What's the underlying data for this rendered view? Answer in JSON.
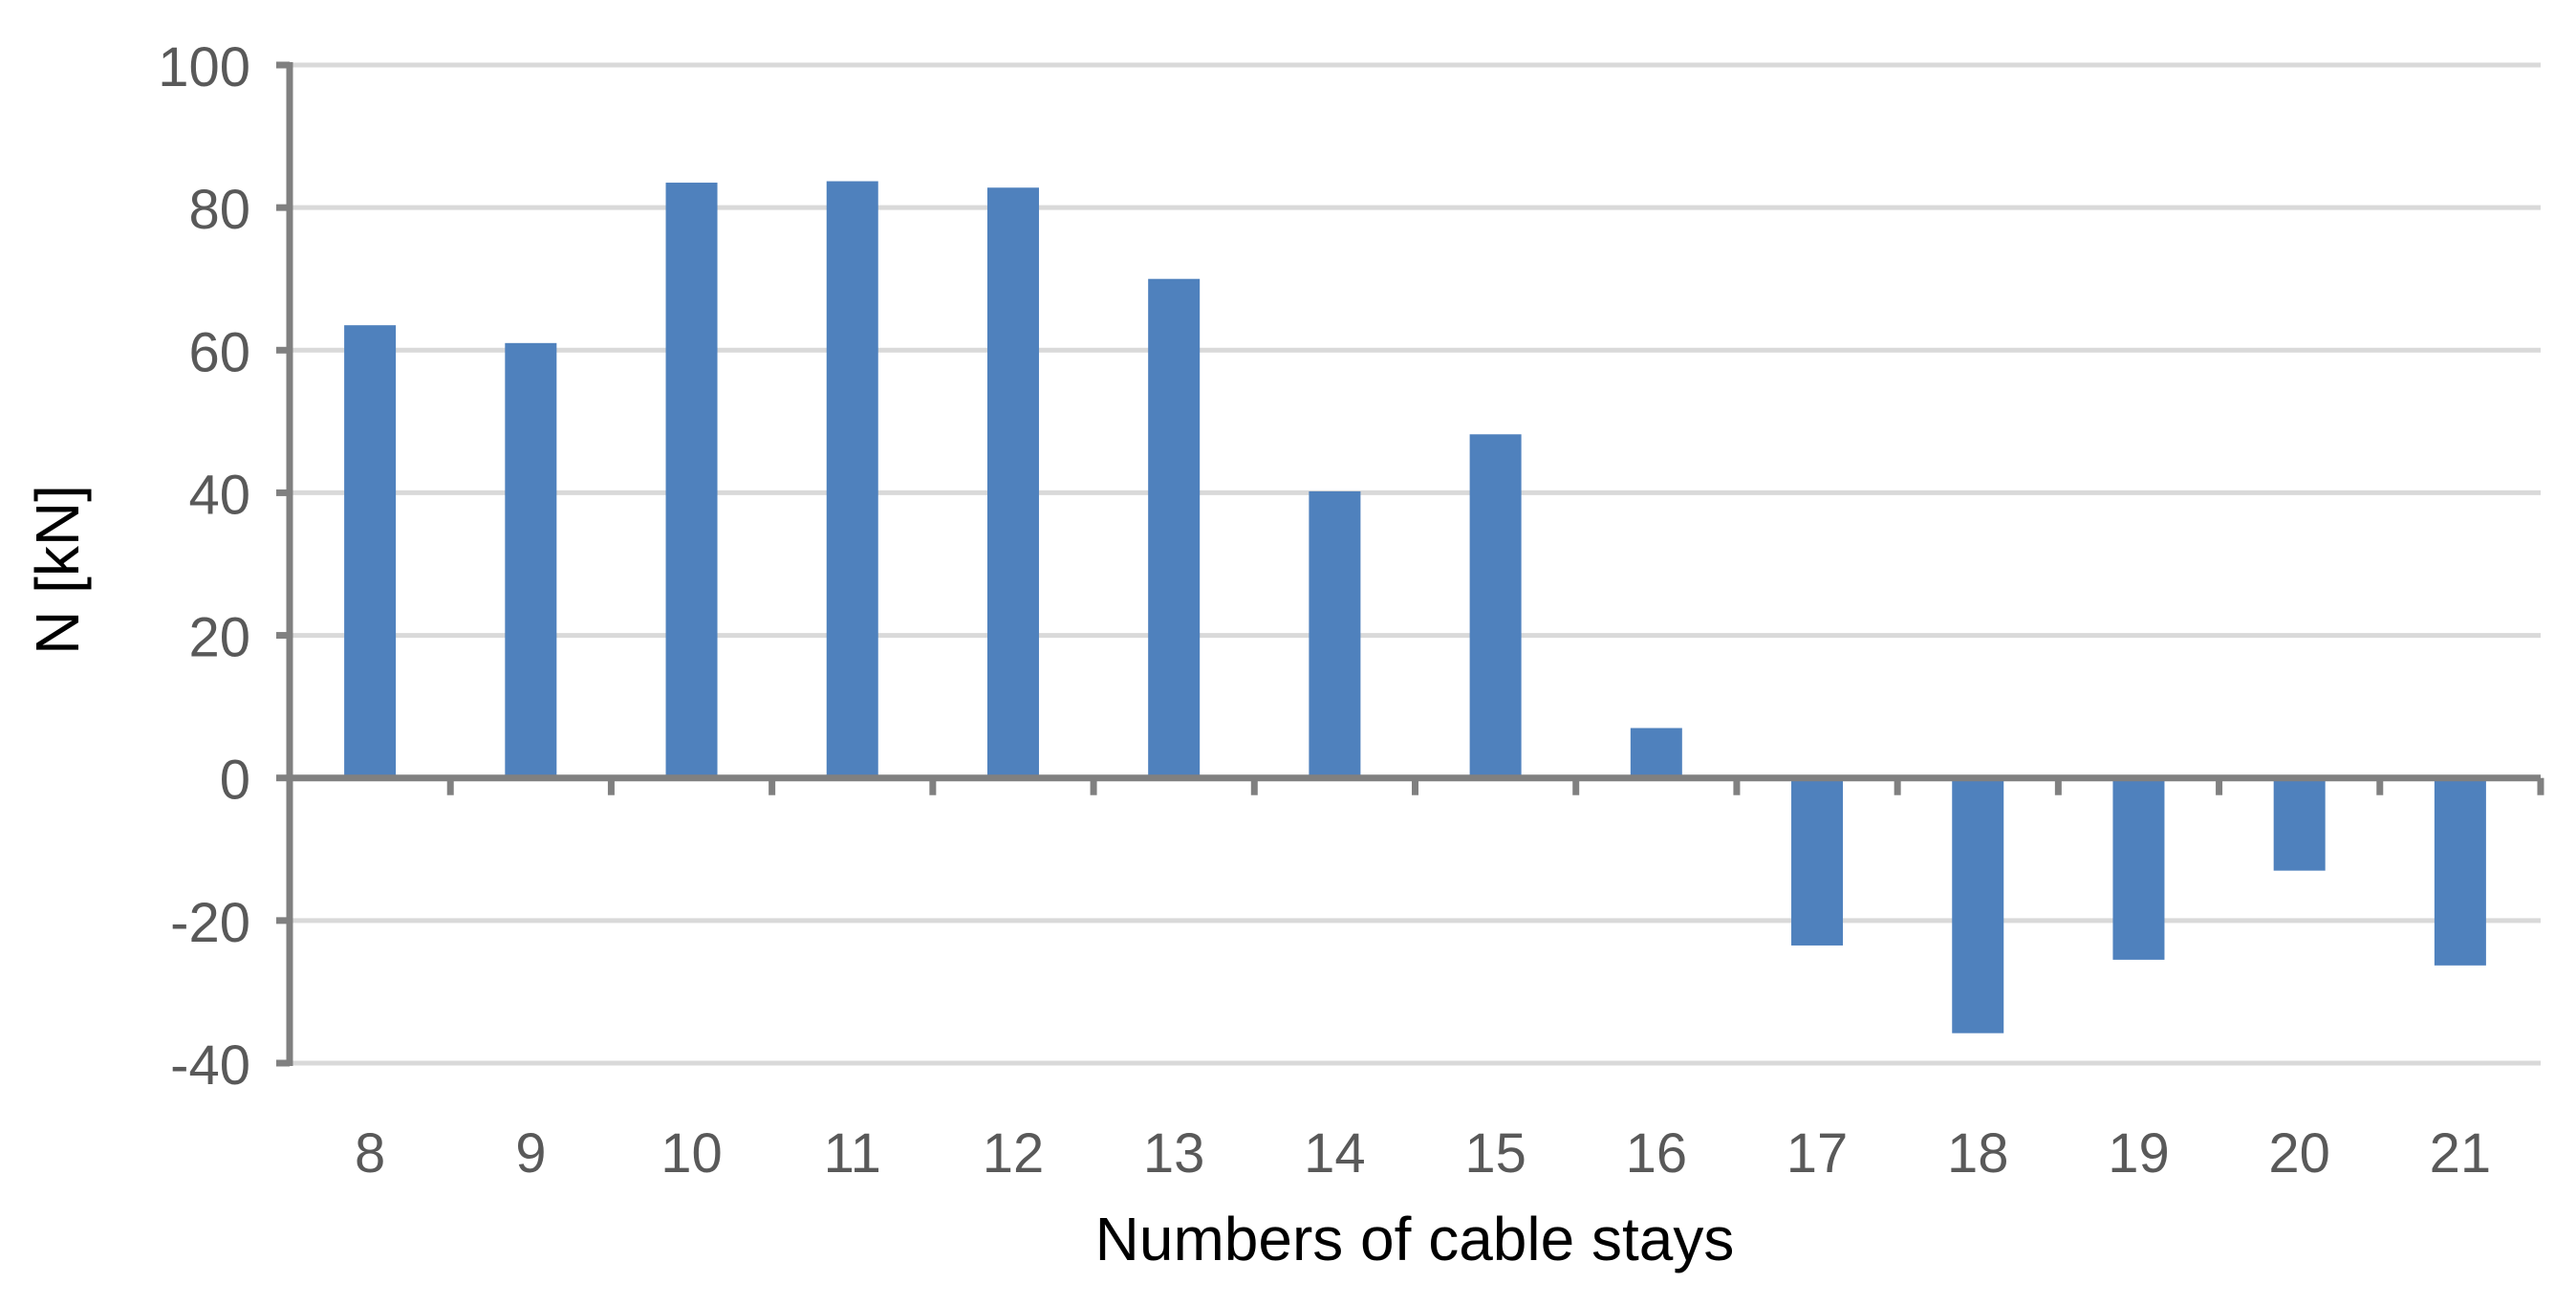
{
  "chart_data": {
    "type": "bar",
    "title": "",
    "xlabel": "Numbers of cable stays",
    "ylabel": "N [kN]",
    "categories": [
      "8",
      "9",
      "10",
      "11",
      "12",
      "13",
      "14",
      "15",
      "16",
      "17",
      "18",
      "19",
      "20",
      "21"
    ],
    "values": [
      63.5,
      61,
      83.5,
      83.7,
      82.8,
      70,
      40.2,
      48.2,
      7,
      -23.5,
      -35.8,
      -25.5,
      -13,
      -26.3
    ],
    "yticks": [
      "-40",
      "-20",
      "0",
      "20",
      "40",
      "60",
      "80",
      "100"
    ],
    "ylim": [
      -40,
      100
    ],
    "grid": true,
    "legend": false,
    "colors": {
      "bar": "#4f81bd",
      "grid": "#d9d9d9",
      "axis": "#808080",
      "tick_label": "#595959",
      "axis_title": "#000000"
    }
  }
}
